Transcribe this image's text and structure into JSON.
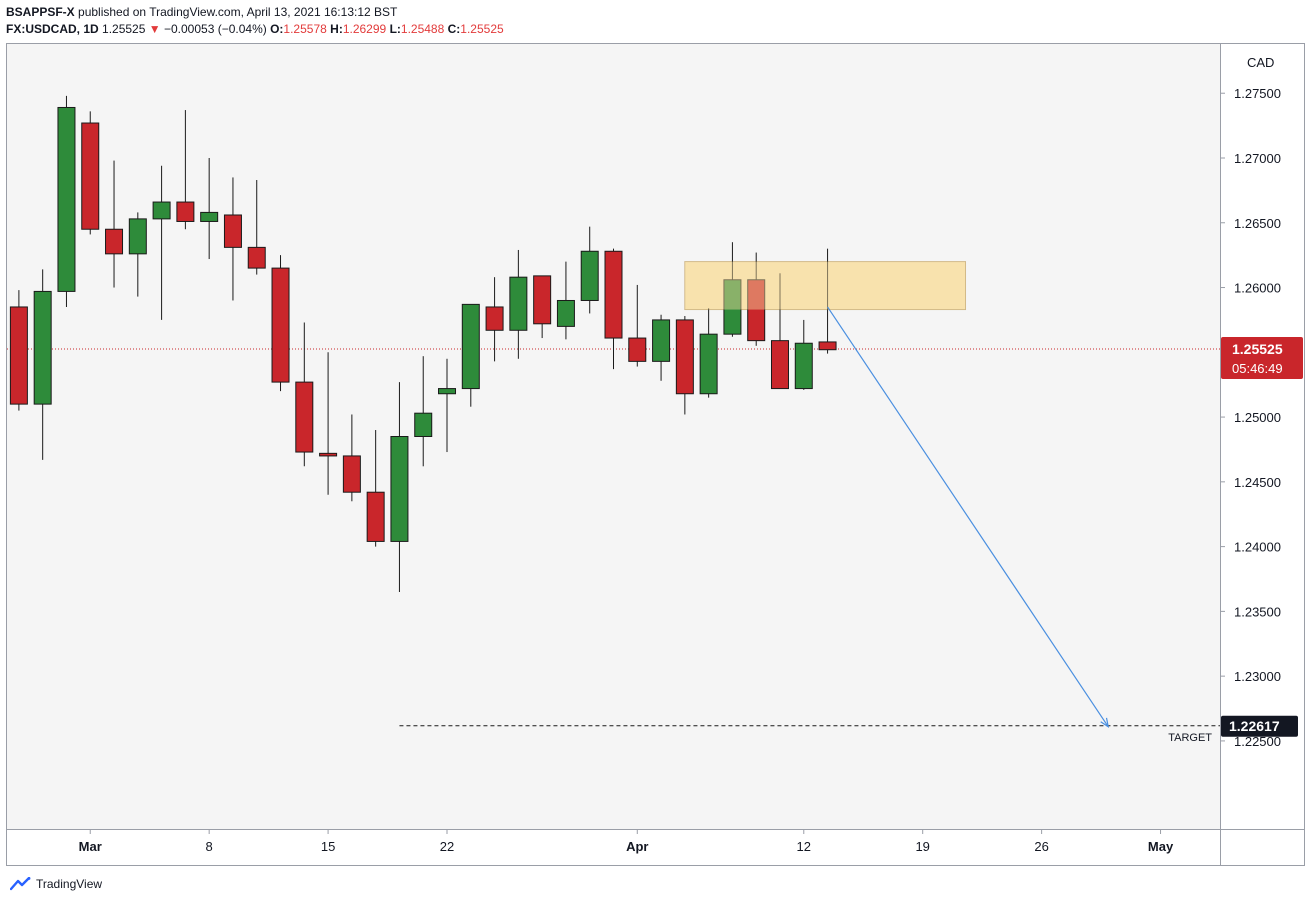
{
  "header": {
    "publisher_line": "BSAPPSF-X published on TradingView.com, April 13, 2021 16:13:12 BST",
    "publisher_user": "BSAPPSF-X",
    "publisher_rest": " published on TradingView.com, April 13, 2021 16:13:12 BST",
    "symbol": "FX:USDCAD, 1D",
    "last": "1.25525",
    "change": "−0.00053 (−0.04%)",
    "o_label": "O:",
    "o_value": "1.25578",
    "h_label": "H:",
    "h_value": "1.26299",
    "l_label": "L:",
    "l_value": "1.25488",
    "c_label": "C:",
    "c_value": "1.25525"
  },
  "footer": {
    "brand": "TradingView"
  },
  "colors": {
    "bull": "#2e8b3a",
    "bear": "#c9262b",
    "zone_fill": "#f9dfa5",
    "zone_border": "#c8b080",
    "arrow": "#4a8fe0",
    "price_badge": "#c9262b",
    "target_badge": "#131722",
    "plot_bg": "#f5f5f5"
  },
  "chart_data": {
    "type": "candlestick",
    "currency": "CAD",
    "y_range": [
      1.2182,
      1.2788
    ],
    "x_range": [
      -0.5,
      50.5
    ],
    "y_ticks": [
      "1.27500",
      "1.27000",
      "1.26500",
      "1.26000",
      "1.25500",
      "1.25000",
      "1.24500",
      "1.24000",
      "1.23500",
      "1.23000",
      "1.22500"
    ],
    "y_tick_values": [
      1.275,
      1.27,
      1.265,
      1.26,
      1.255,
      1.25,
      1.245,
      1.24,
      1.235,
      1.23,
      1.225
    ],
    "x_ticks": [
      {
        "label": "Mar",
        "i": 3,
        "bold": true
      },
      {
        "label": "8",
        "i": 8,
        "bold": false
      },
      {
        "label": "15",
        "i": 13,
        "bold": false
      },
      {
        "label": "22",
        "i": 18,
        "bold": false
      },
      {
        "label": "Apr",
        "i": 26,
        "bold": true
      },
      {
        "label": "12",
        "i": 33,
        "bold": false
      },
      {
        "label": "19",
        "i": 38,
        "bold": false
      },
      {
        "label": "26",
        "i": 43,
        "bold": false
      },
      {
        "label": "May",
        "i": 48,
        "bold": true
      }
    ],
    "candles": [
      {
        "o": 1.2585,
        "h": 1.2598,
        "l": 1.2505,
        "c": 1.251
      },
      {
        "o": 1.251,
        "h": 1.2614,
        "l": 1.2467,
        "c": 1.2597
      },
      {
        "o": 1.2597,
        "h": 1.2748,
        "l": 1.2585,
        "c": 1.2739
      },
      {
        "o": 1.2727,
        "h": 1.2736,
        "l": 1.2641,
        "c": 1.2645
      },
      {
        "o": 1.2645,
        "h": 1.2698,
        "l": 1.26,
        "c": 1.2626
      },
      {
        "o": 1.2626,
        "h": 1.2658,
        "l": 1.2593,
        "c": 1.2653
      },
      {
        "o": 1.2653,
        "h": 1.2694,
        "l": 1.2575,
        "c": 1.2666
      },
      {
        "o": 1.2666,
        "h": 1.2737,
        "l": 1.2645,
        "c": 1.2651
      },
      {
        "o": 1.2651,
        "h": 1.27,
        "l": 1.2622,
        "c": 1.2658
      },
      {
        "o": 1.2656,
        "h": 1.2685,
        "l": 1.259,
        "c": 1.2631
      },
      {
        "o": 1.2631,
        "h": 1.2683,
        "l": 1.261,
        "c": 1.2615
      },
      {
        "o": 1.2615,
        "h": 1.2625,
        "l": 1.252,
        "c": 1.2527
      },
      {
        "o": 1.2527,
        "h": 1.2573,
        "l": 1.2462,
        "c": 1.2473
      },
      {
        "o": 1.2472,
        "h": 1.255,
        "l": 1.244,
        "c": 1.247
      },
      {
        "o": 1.247,
        "h": 1.2502,
        "l": 1.2435,
        "c": 1.2442
      },
      {
        "o": 1.2442,
        "h": 1.249,
        "l": 1.24,
        "c": 1.2404
      },
      {
        "o": 1.2404,
        "h": 1.2527,
        "l": 1.2365,
        "c": 1.2485
      },
      {
        "o": 1.2485,
        "h": 1.2547,
        "l": 1.2462,
        "c": 1.2503
      },
      {
        "o": 1.2518,
        "h": 1.2545,
        "l": 1.2473,
        "c": 1.2522
      },
      {
        "o": 1.2522,
        "h": 1.2587,
        "l": 1.2508,
        "c": 1.2587
      },
      {
        "o": 1.2585,
        "h": 1.2608,
        "l": 1.2543,
        "c": 1.2567
      },
      {
        "o": 1.2567,
        "h": 1.2629,
        "l": 1.2545,
        "c": 1.2608
      },
      {
        "o": 1.2609,
        "h": 1.2609,
        "l": 1.2561,
        "c": 1.2572
      },
      {
        "o": 1.257,
        "h": 1.262,
        "l": 1.256,
        "c": 1.259
      },
      {
        "o": 1.259,
        "h": 1.2647,
        "l": 1.258,
        "c": 1.2628
      },
      {
        "o": 1.2628,
        "h": 1.263,
        "l": 1.2537,
        "c": 1.2561
      },
      {
        "o": 1.2561,
        "h": 1.2602,
        "l": 1.2539,
        "c": 1.2543
      },
      {
        "o": 1.2543,
        "h": 1.2579,
        "l": 1.2528,
        "c": 1.2575
      },
      {
        "o": 1.2575,
        "h": 1.2578,
        "l": 1.2502,
        "c": 1.2518
      },
      {
        "o": 1.2518,
        "h": 1.2584,
        "l": 1.2515,
        "c": 1.2564
      },
      {
        "o": 1.2564,
        "h": 1.2635,
        "l": 1.2562,
        "c": 1.2606
      },
      {
        "o": 1.2606,
        "h": 1.2627,
        "l": 1.2555,
        "c": 1.2559
      },
      {
        "o": 1.2559,
        "h": 1.2611,
        "l": 1.2522,
        "c": 1.2522
      },
      {
        "o": 1.2522,
        "h": 1.2575,
        "l": 1.2521,
        "c": 1.2557
      },
      {
        "o": 1.2558,
        "h": 1.263,
        "l": 1.2549,
        "c": 1.2552
      }
    ],
    "zone": {
      "i0": 28.0,
      "i1": 39.8,
      "y_top": 1.262,
      "y_bot": 1.2583
    },
    "arrow": {
      "i0": 34.0,
      "y0": 1.2585,
      "i1": 45.8,
      "y1": 1.2261
    },
    "target_line": {
      "i0": 16.0,
      "y": 1.22617
    },
    "current_price": {
      "value": 1.25525,
      "label": "1.25525",
      "countdown": "05:46:49"
    },
    "target": {
      "label": "1.22617",
      "text": "TARGET"
    }
  }
}
